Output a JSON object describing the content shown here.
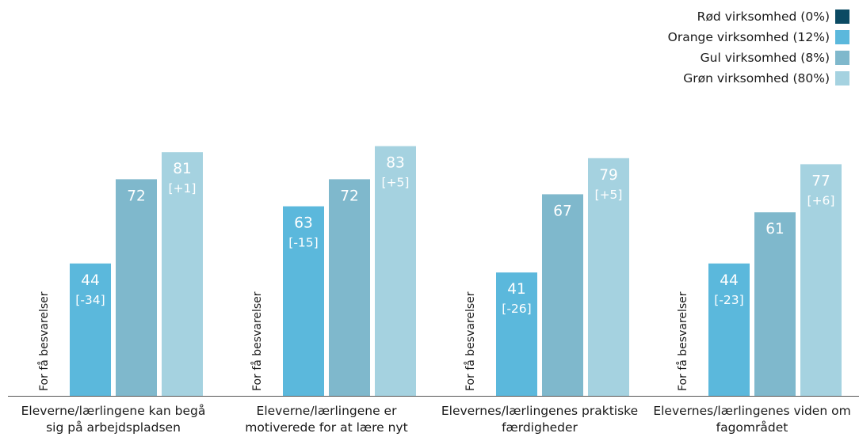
{
  "chart_data": {
    "type": "bar",
    "categories": [
      [
        "Eleverne/lærlingene kan begå",
        "sig på arbejdspladsen"
      ],
      [
        "Eleverne/lærlingene er",
        "motiverede for at lære nyt"
      ],
      [
        "Elevernes/lærlingenes praktiske",
        "færdigheder"
      ],
      [
        "Elevernes/lærlingenes viden om",
        "fagområdet"
      ]
    ],
    "series": [
      {
        "name": "Rød virksomhed (0%)",
        "color": "#0b4a63",
        "values": [
          null,
          null,
          null,
          null
        ],
        "diffs": [
          null,
          null,
          null,
          null
        ],
        "no_data_label": "For få besvarelser"
      },
      {
        "name": "Orange virksomhed (12%)",
        "color": "#5bb8dc",
        "values": [
          44,
          63,
          41,
          44
        ],
        "diffs": [
          "[-34]",
          "[-15]",
          "[-26]",
          "[-23]"
        ]
      },
      {
        "name": "Gul virksomhed (8%)",
        "color": "#7fb8cc",
        "values": [
          72,
          72,
          67,
          61
        ],
        "diffs": [
          null,
          null,
          null,
          null
        ]
      },
      {
        "name": "Grøn virksomhed (80%)",
        "color": "#a5d2e0",
        "values": [
          81,
          83,
          79,
          77
        ],
        "diffs": [
          "[+1]",
          "[+5]",
          "[+5]",
          "[+6]"
        ]
      }
    ],
    "ylim": [
      0,
      100
    ],
    "grid": false,
    "legend_position": "top-right"
  }
}
